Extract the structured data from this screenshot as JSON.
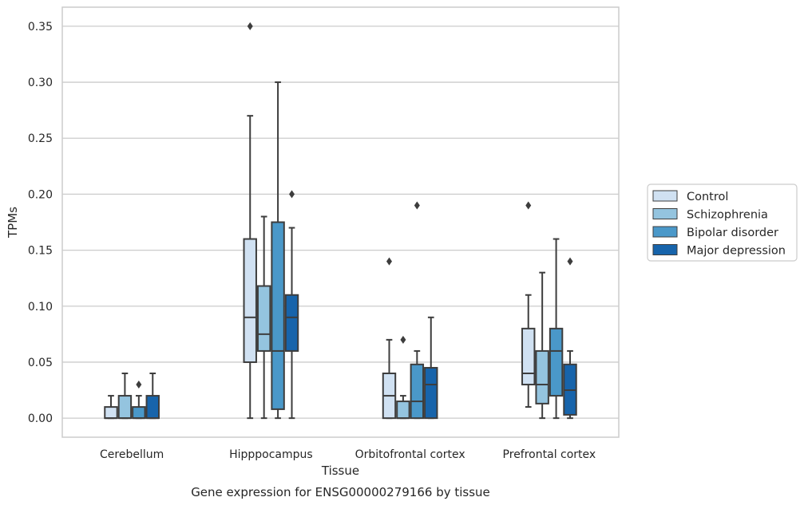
{
  "chart_data": {
    "type": "box",
    "caption": "Gene expression for ENSG00000279166 by tissue",
    "xlabel": "Tissue",
    "ylabel": "TPMs",
    "ylim": [
      -0.017,
      0.367
    ],
    "yticks": [
      0.0,
      0.05,
      0.1,
      0.15,
      0.2,
      0.25,
      0.3,
      0.35
    ],
    "ytick_labels": [
      "0.00",
      "0.05",
      "0.10",
      "0.15",
      "0.20",
      "0.25",
      "0.30",
      "0.35"
    ],
    "grid": "horizontal",
    "legend_position": "right",
    "categories": [
      "Cerebellum",
      "Hipppocampus",
      "Orbitofrontal cortex",
      "Prefrontal cortex"
    ],
    "series": [
      {
        "name": "Control",
        "color": "#d0e1f2",
        "boxes": [
          {
            "whislo": 0.0,
            "q1": 0.0,
            "med": 0.0,
            "q3": 0.01,
            "whishi": 0.02,
            "fliers": []
          },
          {
            "whislo": 0.0,
            "q1": 0.05,
            "med": 0.09,
            "q3": 0.16,
            "whishi": 0.27,
            "fliers": [
              0.35
            ]
          },
          {
            "whislo": 0.0,
            "q1": 0.0,
            "med": 0.02,
            "q3": 0.04,
            "whishi": 0.07,
            "fliers": [
              0.14
            ]
          },
          {
            "whislo": 0.01,
            "q1": 0.03,
            "med": 0.04,
            "q3": 0.08,
            "whishi": 0.11,
            "fliers": [
              0.19
            ]
          }
        ]
      },
      {
        "name": "Schizophrenia",
        "color": "#94c4df",
        "boxes": [
          {
            "whislo": 0.0,
            "q1": 0.0,
            "med": 0.0,
            "q3": 0.02,
            "whishi": 0.04,
            "fliers": []
          },
          {
            "whislo": 0.0,
            "q1": 0.06,
            "med": 0.075,
            "q3": 0.118,
            "whishi": 0.18,
            "fliers": []
          },
          {
            "whislo": 0.0,
            "q1": 0.0,
            "med": 0.0,
            "q3": 0.015,
            "whishi": 0.02,
            "fliers": [
              0.07
            ]
          },
          {
            "whislo": 0.0,
            "q1": 0.013,
            "med": 0.03,
            "q3": 0.06,
            "whishi": 0.13,
            "fliers": []
          }
        ]
      },
      {
        "name": "Bipolar disorder",
        "color": "#4a98c9",
        "boxes": [
          {
            "whislo": 0.0,
            "q1": 0.0,
            "med": 0.0,
            "q3": 0.01,
            "whishi": 0.02,
            "fliers": [
              0.03
            ]
          },
          {
            "whislo": 0.0,
            "q1": 0.008,
            "med": 0.06,
            "q3": 0.175,
            "whishi": 0.3,
            "fliers": []
          },
          {
            "whislo": 0.0,
            "q1": 0.0,
            "med": 0.015,
            "q3": 0.048,
            "whishi": 0.06,
            "fliers": [
              0.19
            ]
          },
          {
            "whislo": 0.0,
            "q1": 0.02,
            "med": 0.06,
            "q3": 0.08,
            "whishi": 0.16,
            "fliers": []
          }
        ]
      },
      {
        "name": "Major depression",
        "color": "#1764ab",
        "boxes": [
          {
            "whislo": 0.0,
            "q1": 0.0,
            "med": 0.0,
            "q3": 0.02,
            "whishi": 0.04,
            "fliers": []
          },
          {
            "whislo": 0.0,
            "q1": 0.06,
            "med": 0.09,
            "q3": 0.11,
            "whishi": 0.17,
            "fliers": [
              0.2
            ]
          },
          {
            "whislo": 0.0,
            "q1": 0.0,
            "med": 0.03,
            "q3": 0.045,
            "whishi": 0.09,
            "fliers": []
          },
          {
            "whislo": 0.0,
            "q1": 0.003,
            "med": 0.025,
            "q3": 0.048,
            "whishi": 0.06,
            "fliers": [
              0.14
            ]
          }
        ]
      }
    ]
  }
}
